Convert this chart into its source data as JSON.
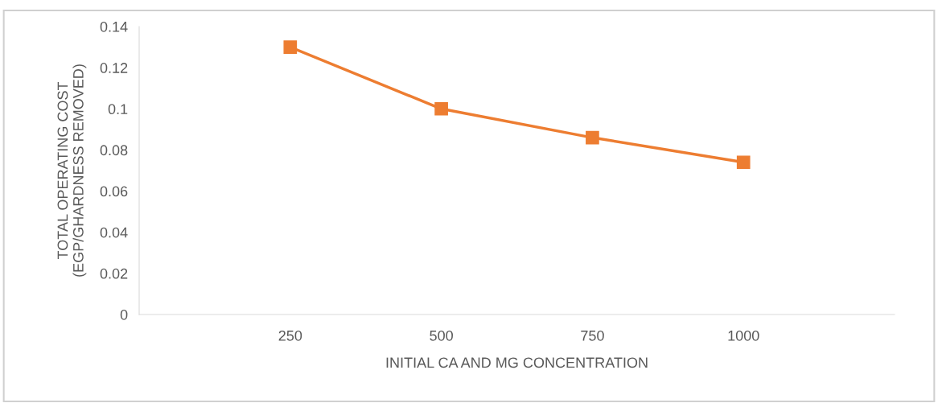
{
  "chart_data": {
    "type": "line",
    "xlabel": "INITIAL CA AND MG CONCENTRATION",
    "ylabel": "TOTAL OPERATING COST\n(EGP/GHARDNESS REMOVED)",
    "x": [
      250,
      500,
      750,
      1000
    ],
    "series": [
      {
        "color": "#ed7d31",
        "values": [
          0.13,
          0.1,
          0.086,
          0.074
        ]
      }
    ],
    "xlim": [
      0,
      1250
    ],
    "xticks": [
      250,
      500,
      750,
      1000
    ],
    "ylim": [
      0,
      0.14
    ],
    "yticks": [
      0,
      0.02,
      0.04,
      0.06,
      0.08,
      0.1,
      0.12,
      0.14
    ],
    "grid": false,
    "legend": false,
    "marker": "square",
    "line_style": "solid"
  }
}
